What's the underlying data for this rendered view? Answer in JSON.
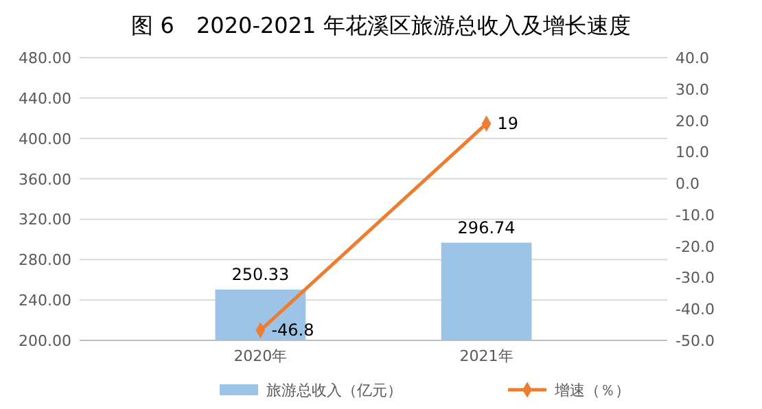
{
  "chart_data": {
    "type": "bar",
    "title": "图 6　2020-2021 年花溪区旅游总收入及增长速度",
    "categories": [
      "2020年",
      "2021年"
    ],
    "series": [
      {
        "name": "旅游总收入（亿元）",
        "color": "#9dc3e6",
        "values": [
          250.33,
          296.74
        ]
      },
      {
        "name": "增速（％）",
        "type": "line",
        "axis": "y2",
        "color": "#ed7d31",
        "marker": "diamond",
        "values": [
          -46.8,
          19
        ]
      }
    ],
    "ylim": [
      200,
      480
    ],
    "yticks": [
      {
        "value": 200,
        "label": "200.00"
      },
      {
        "value": 240,
        "label": "240.00"
      },
      {
        "value": 280,
        "label": "280.00"
      },
      {
        "value": 320,
        "label": "320.00"
      },
      {
        "value": 360,
        "label": "360.00"
      },
      {
        "value": 400,
        "label": "400.00"
      },
      {
        "value": 440,
        "label": "440.00"
      },
      {
        "value": 480,
        "label": "480.00"
      }
    ],
    "y2lim": [
      -50,
      40
    ],
    "y2ticks": [
      {
        "value": -50,
        "label": "-50.0"
      },
      {
        "value": -40,
        "label": "-40.0"
      },
      {
        "value": -30,
        "label": "-30.0"
      },
      {
        "value": -20,
        "label": "-20.0"
      },
      {
        "value": -10,
        "label": "-10.0"
      },
      {
        "value": 0,
        "label": "0.0"
      },
      {
        "value": 10,
        "label": "10.0"
      },
      {
        "value": 20,
        "label": "20.0"
      },
      {
        "value": 30,
        "label": "30.0"
      },
      {
        "value": 40,
        "label": "40.0"
      }
    ],
    "grid": "y",
    "legend": "bottom",
    "data_labels": true
  }
}
